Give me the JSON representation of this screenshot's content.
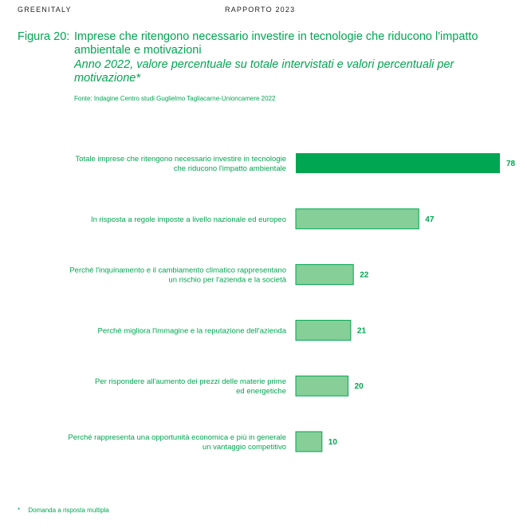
{
  "header": {
    "left": "GREENITALY",
    "center": "RAPPORTO 2023"
  },
  "figure": {
    "label": "Figura 20:",
    "title": "Imprese che ritengono necessario investire in tecnologie che riducono l'impatto ambientale e motivazioni",
    "subtitle": "Anno 2022, valore percentuale su totale intervistati e valori percentuali per motivazione*",
    "source": "Fonte: Indagine Centro studi Guglielmo Tagliacarne-Unioncamere 2022"
  },
  "colors": {
    "accent": "#00a651",
    "bar_light": "#86cf98",
    "bar_light_border": "#00a651",
    "label": "#00a651"
  },
  "chart_data": {
    "type": "bar",
    "orientation": "horizontal",
    "categories": [
      [
        "Totale imprese che ritengono necessario investire in tecnologie",
        "che riducono l'impatto ambientale"
      ],
      [
        "In risposta a regole imposte a livello nazionale ed europeo"
      ],
      [
        "Perché l'inquinamento e il cambiamento climatico rappresentano",
        "un rischio per l'azienda e la società"
      ],
      [
        "Perché migliora l'immagine e la reputazione dell'azienda"
      ],
      [
        "Per rispondere all'aumento dei prezzi delle materie prime",
        "ed energetiche"
      ],
      [
        "Perché rappresenta una opportunità economica e più in generale",
        "un vantaggio competitivo"
      ]
    ],
    "values": [
      78,
      47,
      22,
      21,
      20,
      10
    ],
    "highlight_index": 0,
    "data_labels": true,
    "grid": false,
    "axis": "hidden"
  },
  "footnote": {
    "marker": "*",
    "text": "Domanda a risposta multipla"
  }
}
